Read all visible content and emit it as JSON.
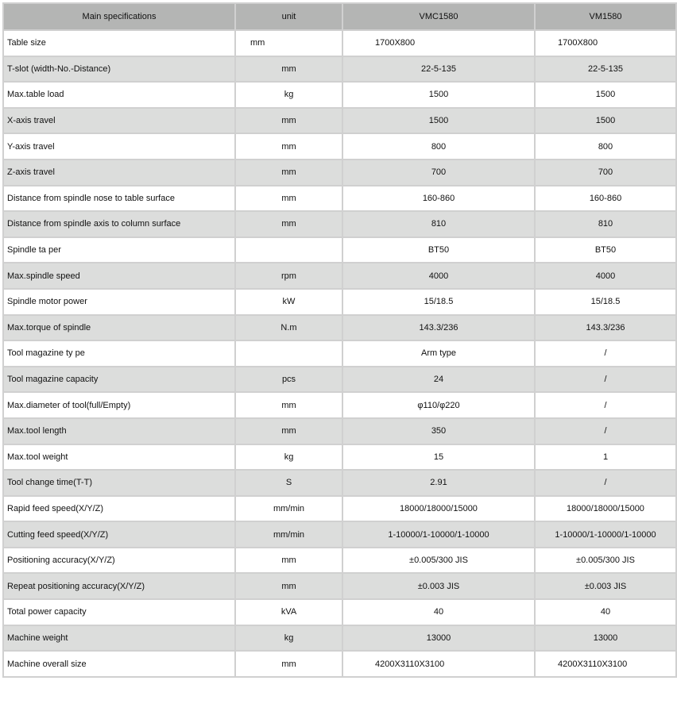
{
  "headers": [
    "Main specifications",
    "unit",
    "VMC1580",
    "VM1580"
  ],
  "rows": [
    [
      "Table size",
      "mm",
      "1700X800",
      "1700X800"
    ],
    [
      "T-slot (width-No.-Distance)",
      "mm",
      "22-5-135",
      "22-5-135"
    ],
    [
      "Max.table load",
      "kg",
      "1500",
      "1500"
    ],
    [
      "X-axis travel",
      "mm",
      "1500",
      "1500"
    ],
    [
      "Y-axis travel",
      "mm",
      "800",
      "800"
    ],
    [
      "Z-axis travel",
      "mm",
      "700",
      "700"
    ],
    [
      "Distance from spindle nose to table surface",
      "mm",
      "160-860",
      "160-860"
    ],
    [
      "Distance from spindle axis to column surface",
      "mm",
      "810",
      "810"
    ],
    [
      "Spindle ta per",
      "",
      "BT50",
      "BT50"
    ],
    [
      "Max.spindle speed",
      "rpm",
      "4000",
      "4000"
    ],
    [
      "Spindle motor power",
      "kW",
      "15/18.5",
      "15/18.5"
    ],
    [
      "Max.torque of spindle",
      "N.m",
      "143.3/236",
      "143.3/236"
    ],
    [
      "Tool magazine ty pe",
      "",
      "Arm type",
      "/"
    ],
    [
      "Tool magazine capacity",
      "pcs",
      "24",
      "/"
    ],
    [
      "Max.diameter of tool(full/Empty)",
      "mm",
      "φ110/φ220",
      "/"
    ],
    [
      "Max.tool length",
      "mm",
      "350",
      "/"
    ],
    [
      "Max.tool weight",
      "kg",
      "15",
      "1"
    ],
    [
      "Tool change time(T-T)",
      "S",
      "2.91",
      "/"
    ],
    [
      "Rapid feed speed(X/Y/Z)",
      "mm/min",
      "18000/18000/15000",
      "18000/18000/15000"
    ],
    [
      "Cutting feed speed(X/Y/Z)",
      "mm/min",
      "1-10000/1-10000/1-10000",
      "1-10000/1-10000/1-10000"
    ],
    [
      "Positioning accuracy(X/Y/Z)",
      "mm",
      "±0.005/300 JIS",
      "±0.005/300 JIS"
    ],
    [
      "Repeat positioning accuracy(X/Y/Z)",
      "mm",
      "±0.003 JIS",
      "±0.003 JIS"
    ],
    [
      "Total power capacity",
      "kVA",
      "40",
      "40"
    ],
    [
      "Machine weight",
      "kg",
      "13000",
      "13000"
    ],
    [
      "Machine overall size",
      "mm",
      "4200X3110X3100",
      "4200X3110X3100"
    ]
  ]
}
